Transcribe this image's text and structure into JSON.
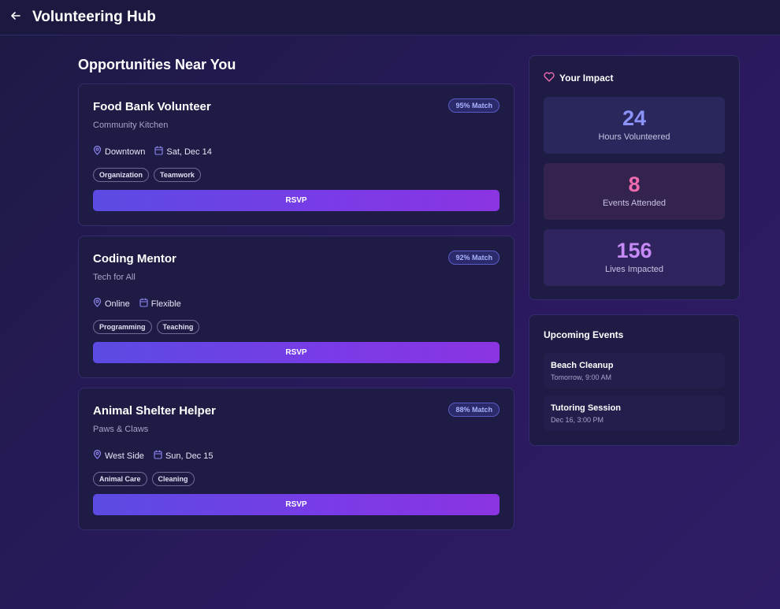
{
  "header": {
    "title": "Volunteering Hub",
    "back_icon": "arrow-left-icon"
  },
  "main": {
    "section_title": "Opportunities Near You",
    "opportunities": [
      {
        "title": "Food Bank Volunteer",
        "organization": "Community Kitchen",
        "match": "95% Match",
        "location": "Downtown",
        "date": "Sat, Dec 14",
        "tags": [
          "Organization",
          "Teamwork"
        ],
        "rsvp_label": "RSVP"
      },
      {
        "title": "Coding Mentor",
        "organization": "Tech for All",
        "match": "92% Match",
        "location": "Online",
        "date": "Flexible",
        "tags": [
          "Programming",
          "Teaching"
        ],
        "rsvp_label": "RSVP"
      },
      {
        "title": "Animal Shelter Helper",
        "organization": "Paws & Claws",
        "match": "88% Match",
        "location": "West Side",
        "date": "Sun, Dec 15",
        "tags": [
          "Animal Care",
          "Cleaning"
        ],
        "rsvp_label": "RSVP"
      }
    ]
  },
  "sidebar": {
    "impact": {
      "title": "Your Impact",
      "icon": "heart-icon",
      "stats": [
        {
          "value": "24",
          "label": "Hours Volunteered",
          "color": "#8b93f8"
        },
        {
          "value": "8",
          "label": "Events Attended",
          "color": "#f06ab0"
        },
        {
          "value": "156",
          "label": "Lives Impacted",
          "color": "#c58af5"
        }
      ]
    },
    "upcoming": {
      "title": "Upcoming Events",
      "events": [
        {
          "title": "Beach Cleanup",
          "time": "Tomorrow, 9:00 AM"
        },
        {
          "title": "Tutoring Session",
          "time": "Dec 16, 3:00 PM"
        }
      ]
    }
  },
  "colors": {
    "accent_start": "#5b4be3",
    "accent_end": "#8b34e2",
    "icon_accent": "#8e86f0",
    "heart": "#f06ab0"
  }
}
